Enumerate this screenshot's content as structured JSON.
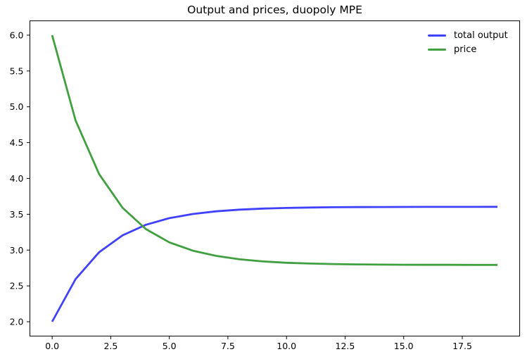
{
  "chart_data": {
    "type": "line",
    "title": "Output and prices, duopoly MPE",
    "x": [
      0,
      1,
      2,
      3,
      4,
      5,
      6,
      7,
      8,
      9,
      10,
      11,
      12,
      13,
      14,
      15,
      16,
      17,
      18,
      19
    ],
    "series": [
      {
        "name": "total output",
        "color": "#4040ff",
        "values": [
          2.0,
          2.595,
          2.969,
          3.205,
          3.353,
          3.446,
          3.504,
          3.541,
          3.565,
          3.579,
          3.588,
          3.594,
          3.598,
          3.6,
          3.601,
          3.602,
          3.603,
          3.603,
          3.603,
          3.604
        ]
      },
      {
        "name": "price",
        "color": "#40a040",
        "values": [
          6.0,
          4.81,
          4.062,
          3.591,
          3.293,
          3.108,
          2.992,
          2.919,
          2.871,
          2.842,
          2.823,
          2.812,
          2.805,
          2.8,
          2.797,
          2.795,
          2.794,
          2.794,
          2.793,
          2.793
        ]
      }
    ],
    "xlabel": "",
    "ylabel": "",
    "xlim": [
      -0.95,
      19.95
    ],
    "ylim": [
      1.8,
      6.2
    ],
    "xticks": [
      0.0,
      2.5,
      5.0,
      7.5,
      10.0,
      12.5,
      15.0,
      17.5
    ],
    "xtick_labels": [
      "0.0",
      "2.5",
      "5.0",
      "7.5",
      "10.0",
      "12.5",
      "15.0",
      "17.5"
    ],
    "yticks": [
      2.0,
      2.5,
      3.0,
      3.5,
      4.0,
      4.5,
      5.0,
      5.5,
      6.0
    ],
    "ytick_labels": [
      "2.0",
      "2.5",
      "3.0",
      "3.5",
      "4.0",
      "4.5",
      "5.0",
      "5.5",
      "6.0"
    ],
    "grid": false,
    "legend_position": "upper right",
    "axes_color": "#000000",
    "tick_label_color": "#000000",
    "line_width": 2.8
  }
}
